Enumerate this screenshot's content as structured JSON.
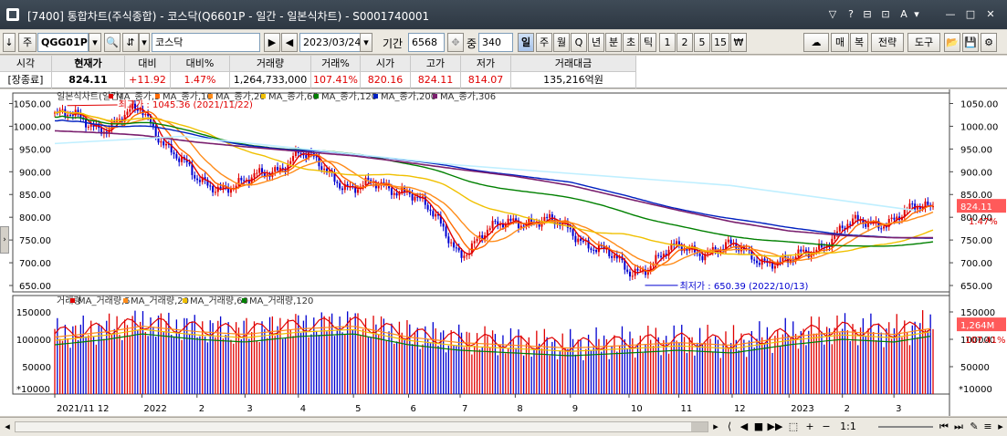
{
  "window": {
    "title": "[7400] 통합차트(주식종합) - 코스닥(Q6601P - 일간 - 일본식차트) - S0001740001",
    "title_buttons": [
      "▽",
      "?",
      "⊟",
      "⊡",
      "A",
      "▾"
    ],
    "window_buttons": [
      "—",
      "□",
      "✕"
    ]
  },
  "toolbar": {
    "code": "QGG01P",
    "name": "코스닥",
    "date": "2023/03/24",
    "period_label": "기간",
    "period_value": "6568",
    "count_label": "중",
    "count_value": "340",
    "intervals": [
      "일",
      "주",
      "월",
      "Q",
      "년",
      "분",
      "초",
      "틱",
      "1",
      "2",
      "5",
      "15",
      "₩"
    ],
    "selected_interval": "일",
    "right_buttons": [
      "매",
      "복",
      "전략",
      "도구"
    ]
  },
  "quote": {
    "headers": [
      "시각",
      "현재가",
      "대비",
      "대비%",
      "거래량",
      "거래%",
      "시가",
      "고가",
      "저가",
      "거래대금"
    ],
    "values": [
      "[장종료]",
      "824.11",
      "+11.92",
      "1.47%",
      "1,264,733,000",
      "107.41%",
      "820.16",
      "824.11",
      "814.07",
      "135,216억원"
    ]
  },
  "price_panel": {
    "legend": [
      {
        "label": "일본식차트(일간)",
        "color": "#555555"
      },
      {
        "label": "MA_종가,5",
        "color": "#e00000"
      },
      {
        "label": "MA_종가,10",
        "color": "#ff6a00"
      },
      {
        "label": "MA_종가,20",
        "color": "#ff8c1a"
      },
      {
        "label": "MA_종가,60",
        "color": "#f0c000"
      },
      {
        "label": "MA_종가,120",
        "color": "#008000"
      },
      {
        "label": "MA_종가,200",
        "color": "#0020c0"
      },
      {
        "label": "MA_종가,306",
        "color": "#7a1f6e"
      }
    ],
    "high_annotation": "최고가 : 1045.36 (2021/11/22)",
    "low_annotation": "최저가 : 650.39 (2022/10/13)",
    "last_price_tag": "824.11",
    "last_change_tag": "1.47%",
    "axis_ticks": [
      "1050.00",
      "1000.00",
      "950.00",
      "900.00",
      "850.00",
      "800.00",
      "750.00",
      "700.00",
      "650.00"
    ]
  },
  "volume_panel": {
    "legend": [
      {
        "label": "거래량",
        "color": "#555555"
      },
      {
        "label": "MA_거래량,5",
        "color": "#e00000"
      },
      {
        "label": "MA_거래량,20",
        "color": "#ff8c1a"
      },
      {
        "label": "MA_거래량,60",
        "color": "#f0c000"
      },
      {
        "label": "MA_거래량,120",
        "color": "#008000"
      }
    ],
    "axis_ticks": [
      "150000",
      "100000",
      "50000"
    ],
    "unit_label": "*10000",
    "last_volume_tag": "1,264M",
    "last_ratio_tag": "107.41%"
  },
  "x_axis_labels": [
    "2021/11 12",
    "2022",
    "2",
    "3",
    "4",
    "5",
    "6",
    "7",
    "8",
    "9",
    "10",
    "11",
    "12",
    "2023",
    "2",
    "3"
  ],
  "bottom_controls": [
    "⟨",
    "◀",
    "■",
    "▶▶",
    "⬚",
    "+",
    "−",
    "1:1"
  ],
  "chart_data": {
    "type": "line",
    "title": "코스닥 일간 일본식차트",
    "x": [
      "2021-11-15",
      "2021-12-15",
      "2022-01-03",
      "2022-02-03",
      "2022-03-02",
      "2022-04-01",
      "2022-05-02",
      "2022-06-02",
      "2022-07-01",
      "2022-08-01",
      "2022-09-01",
      "2022-10-04",
      "2022-11-01",
      "2022-12-01",
      "2023-01-02",
      "2023-02-01",
      "2023-03-02",
      "2023-03-24"
    ],
    "series": [
      {
        "name": "종가",
        "values": [
          1025,
          1000,
          1035,
          875,
          870,
          940,
          865,
          865,
          725,
          800,
          775,
          680,
          730,
          730,
          695,
          775,
          800,
          824.11
        ]
      },
      {
        "name": "MA_종가,306",
        "values": [
          990,
          985,
          980,
          965,
          955,
          945,
          935,
          920,
          905,
          890,
          870,
          840,
          815,
          790,
          770,
          760,
          755,
          755
        ]
      },
      {
        "name": "거래량(만)",
        "values": [
          110000,
          120000,
          130000,
          120000,
          115000,
          125000,
          130000,
          110000,
          100000,
          95000,
          90000,
          95000,
          100000,
          95000,
          110000,
          120000,
          115000,
          126473
        ]
      }
    ],
    "ylabel": "",
    "ylim": [
      640,
      1065
    ],
    "volume_ylim": [
      0,
      170000
    ],
    "high": {
      "value": 1045.36,
      "date": "2021/11/22"
    },
    "low": {
      "value": 650.39,
      "date": "2022/10/13"
    },
    "grid": false,
    "legend_placement": "top-left"
  }
}
